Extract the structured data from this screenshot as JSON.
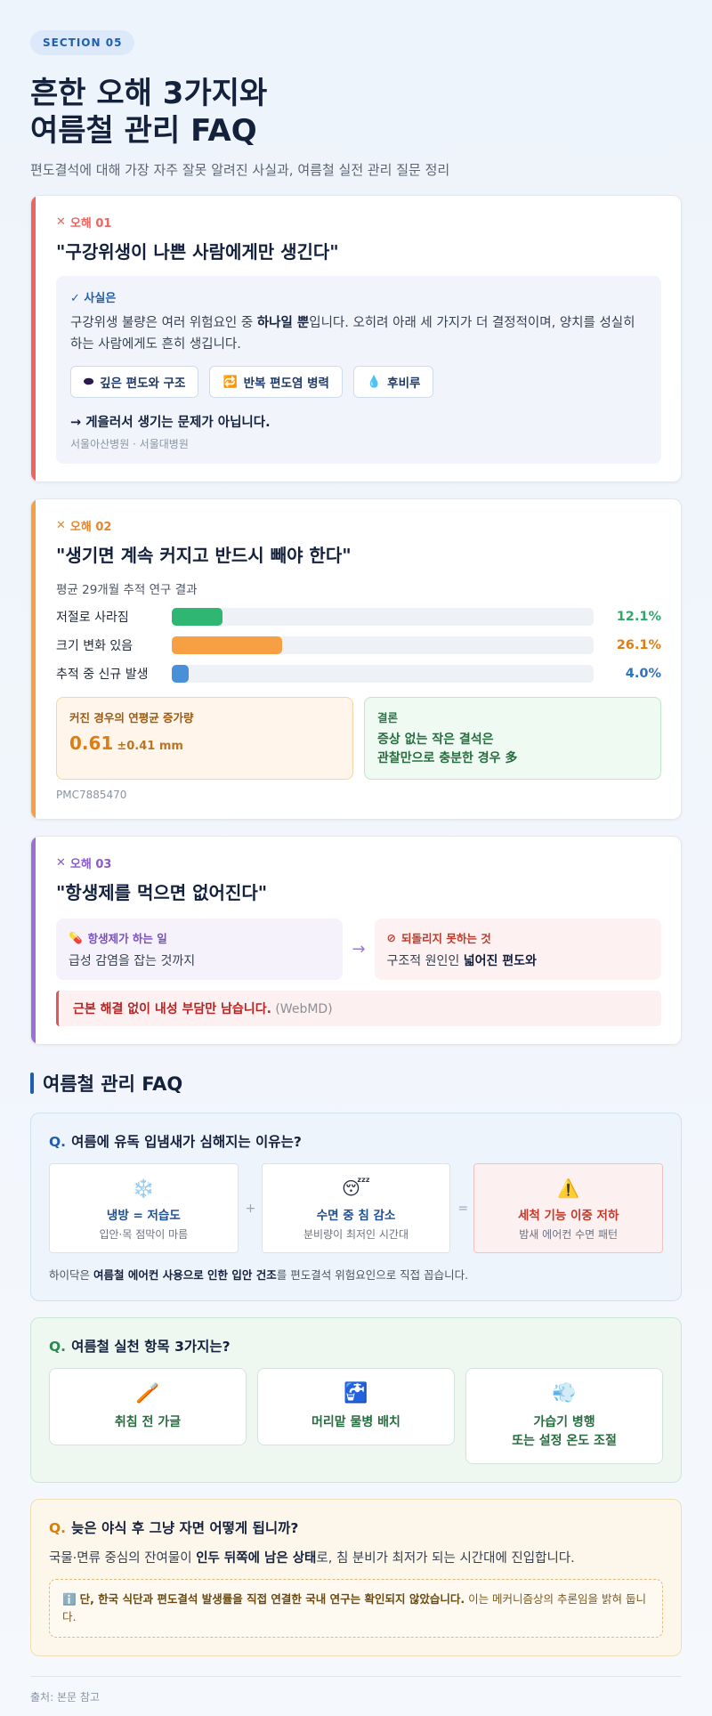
{
  "header": {
    "section_pill": "SECTION 05",
    "title_line1": "흔한 오해 3가지와",
    "title_line2": "여름철 관리 FAQ",
    "subtitle": "편도결석에 대해 가장 자주 잘못 알려진 사실과, 여름철 실전 관리 질문 정리"
  },
  "myths": [
    {
      "tag": "오해 01",
      "color": "#ef6461",
      "title": "\"구강위생이 나쁜 사람에게만 생긴다\"",
      "fact_label": "✓ 사실은",
      "fact_pre": "구강위생 불량은 여러 위험요인 중 ",
      "fact_bold": "하나일 뿐",
      "fact_post": "입니다. 오히려 아래 세 가지가 더 결정적이며, 양치를 성실히 하는 사람에게도 흔히 생깁니다.",
      "chips": [
        {
          "icon": "⬬",
          "label": "깊은 편도와 구조"
        },
        {
          "icon": "🔁",
          "label": "반복 편도염 병력"
        },
        {
          "icon": "💧",
          "label": "후비루"
        }
      ],
      "conclusion": "→ 게을러서 생기는 문제가 아닙니다.",
      "source": "서울아산병원 · 서울대병원"
    },
    {
      "tag": "오해 02",
      "color": "#f6a043",
      "title": "\"생기면 계속 커지고 반드시 빼야 한다\"",
      "study_label": "평균 29개월 추적 연구 결과",
      "stats": [
        {
          "label": "저절로 사라짐",
          "value": "12.1%",
          "pct": 12.1,
          "color": "#2fb673",
          "text_color": "#2fa86a"
        },
        {
          "label": "크기 변화 있음",
          "value": "26.1%",
          "pct": 26.1,
          "color": "#f6a043",
          "text_color": "#e07d12"
        },
        {
          "label": "추적 중 신규 발생",
          "value": "4.0%",
          "pct": 4.0,
          "color": "#4a90d9",
          "text_color": "#2f73c4"
        }
      ],
      "growth_label": "커진 경우의 연평균 증가량",
      "growth_value": "0.61",
      "growth_pm": "±0.41 mm",
      "conclusion_label": "결론",
      "conclusion_line1": "증상 없는 작은 결석은",
      "conclusion_line2": "관찰만으로 충분한 경우 多",
      "source": "PMC7885470"
    },
    {
      "tag": "오해 03",
      "color": "#9b6fd6",
      "title": "\"항생제를 먹으면 없어진다\"",
      "left_label": "항생제가 하는 일",
      "left_text": "급성 감염을 잡는 것까지",
      "right_label": "되돌리지 못하는 것",
      "right_pre": "구조적 원인인 ",
      "right_bold": "넓어진 편도와",
      "warn_bold": "근본 해결 없이 내성 부담만 남습니다.",
      "warn_src": " (WebMD)"
    }
  ],
  "faq_heading": "여름철 관리 FAQ",
  "faq": [
    {
      "q": "여름에 유독 입냄새가 심해지는 이유는?",
      "items": [
        {
          "icon": "❄️",
          "title": "냉방 = 저습도",
          "desc": "입안·목 점막이 마름"
        },
        {
          "icon": "😴",
          "title": "수면 중 침 감소",
          "desc": "분비량이 최저인 시간대"
        },
        {
          "icon": "⚠️",
          "title": "세척 기능 이중 저하",
          "desc": "밤새 에어컨 수면 패턴"
        }
      ],
      "op1": "+",
      "op2": "=",
      "note_pre": "하이닥은 ",
      "note_bold1": "여름철 에어컨 사용으로 인한 입안 건조",
      "note_post": "를 편도결석 위험요인으로 직접 꼽습니다."
    },
    {
      "q": "여름철 실천 항목 3가지는?",
      "items": [
        {
          "icon": "🪥",
          "title1": "취침 전 가글",
          "title2": ""
        },
        {
          "icon": "🚰",
          "title1": "머리맡 물병 배치",
          "title2": ""
        },
        {
          "icon": "💨",
          "title1": "가습기 병행",
          "title2": "또는 설정 온도 조절"
        }
      ]
    },
    {
      "q": "늦은 야식 후 그냥 자면 어떻게 됩니까?",
      "ans_pre": "국물·면류 중심의 잔여물이 ",
      "ans_bold": "인두 뒤쪽에 남은 상태",
      "ans_post": "로, 침 분비가 최저가 되는 시간대에 진입합니다.",
      "note_icon": "ℹ️",
      "note_bold": "단, 한국 식단과 편도결석 발생률을 직접 연결한 국내 연구는 확인되지 않았습니다.",
      "note_post": " 이는 메커니즘상의 추론임을 밝혀 둡니다."
    }
  ],
  "footer": "출처: 본문 참고"
}
